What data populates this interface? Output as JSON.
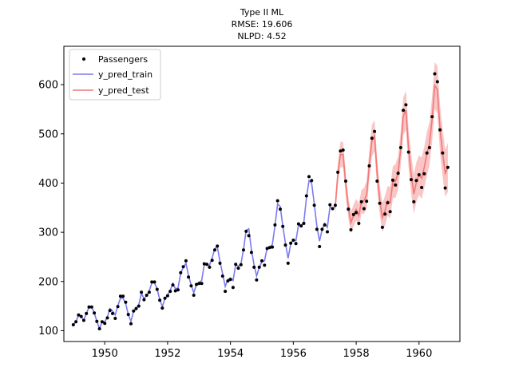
{
  "chart_data": {
    "type": "line",
    "title_lines": [
      "Type II ML",
      "RMSE: 19.606",
      "NLPD: 4.52"
    ],
    "xlabel": "",
    "ylabel": "",
    "xlim": [
      1948.7,
      1961.3
    ],
    "ylim": [
      78,
      678
    ],
    "x_ticks": [
      1950,
      1952,
      1954,
      1956,
      1958,
      1960
    ],
    "x_tick_labels": [
      "1950",
      "1952",
      "1954",
      "1956",
      "1958",
      "1960"
    ],
    "y_ticks": [
      100,
      200,
      300,
      400,
      500,
      600
    ],
    "y_tick_labels": [
      "100",
      "200",
      "300",
      "400",
      "500",
      "600"
    ],
    "grid": false,
    "legend_placement": "upper-left",
    "legend": [
      {
        "label": "Passengers",
        "kind": "marker",
        "color": "#000000"
      },
      {
        "label": "y_pred_train",
        "kind": "line",
        "color": "#7b7bf2"
      },
      {
        "label": "y_pred_test",
        "kind": "line",
        "color": "#f27878"
      }
    ],
    "colors": {
      "train": "#7b7bf2",
      "test": "#f27878",
      "band": "#f7b2b2",
      "points": "#000000"
    },
    "start_year": 1949,
    "points_per_year": 12,
    "train_count": 100,
    "passengers": [
      112,
      118,
      132,
      129,
      121,
      135,
      148,
      148,
      136,
      119,
      104,
      118,
      115,
      126,
      141,
      135,
      125,
      149,
      170,
      170,
      158,
      133,
      114,
      140,
      145,
      150,
      178,
      163,
      172,
      178,
      199,
      199,
      184,
      162,
      146,
      166,
      171,
      180,
      193,
      181,
      183,
      218,
      230,
      242,
      209,
      191,
      172,
      194,
      196,
      196,
      236,
      235,
      229,
      243,
      264,
      272,
      237,
      211,
      180,
      201,
      204,
      188,
      235,
      227,
      234,
      264,
      302,
      293,
      259,
      229,
      203,
      229,
      242,
      233,
      267,
      269,
      270,
      315,
      364,
      347,
      312,
      274,
      237,
      278,
      284,
      277,
      317,
      313,
      318,
      374,
      413,
      405,
      355,
      306,
      271,
      306,
      315,
      301,
      356,
      348,
      355,
      422,
      465,
      467,
      404,
      347,
      305,
      336,
      340,
      318,
      362,
      348,
      363,
      435,
      491,
      505,
      404,
      359,
      310,
      337,
      360,
      342,
      406,
      396,
      420,
      472,
      548,
      559,
      463,
      407,
      362,
      405,
      417,
      391,
      419,
      461,
      472,
      535,
      622,
      606,
      508,
      461,
      390,
      432
    ],
    "y_pred_train": [
      112,
      118,
      132,
      129,
      121,
      135,
      148,
      148,
      136,
      119,
      104,
      118,
      118,
      128,
      145,
      140,
      132,
      151,
      166,
      166,
      155,
      133,
      119,
      139,
      145,
      153,
      176,
      165,
      171,
      181,
      197,
      197,
      185,
      163,
      149,
      165,
      172,
      182,
      196,
      185,
      187,
      217,
      229,
      237,
      212,
      193,
      177,
      194,
      198,
      202,
      234,
      234,
      233,
      248,
      267,
      270,
      241,
      216,
      190,
      204,
      207,
      202,
      234,
      231,
      236,
      265,
      304,
      307,
      264,
      234,
      211,
      229,
      240,
      242,
      268,
      270,
      275,
      313,
      358,
      352,
      313,
      278,
      247,
      276,
      285,
      283,
      315,
      314,
      320,
      370,
      405,
      400,
      358,
      312,
      282,
      305,
      318,
      310,
      352,
      348
    ],
    "y_pred_test": [
      352,
      418,
      458,
      458,
      398,
      350,
      320,
      334,
      346,
      334,
      362,
      364,
      376,
      436,
      486,
      496,
      420,
      366,
      330,
      344,
      364,
      360,
      402,
      404,
      420,
      470,
      536,
      548,
      470,
      418,
      378,
      402,
      416,
      410,
      432,
      460,
      480,
      530,
      598,
      590,
      510,
      462,
      420,
      432
    ],
    "test_band_halfwidth": [
      18,
      22,
      26,
      26,
      24,
      22,
      22,
      22,
      22,
      24,
      24,
      26,
      28,
      30,
      32,
      32,
      32,
      30,
      30,
      30,
      30,
      32,
      32,
      34,
      34,
      36,
      38,
      40,
      40,
      40,
      40,
      40,
      40,
      42,
      42,
      44,
      44,
      46,
      48,
      48,
      48,
      48,
      48,
      50
    ]
  }
}
